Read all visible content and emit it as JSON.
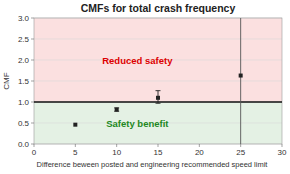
{
  "chart_data": {
    "type": "scatter",
    "title": "CMFs for total crash frequency",
    "x_label": "Difference beween posted and engineering recommended speed limit",
    "y_label": "CMF",
    "x": [
      5,
      10,
      15,
      25
    ],
    "values": [
      0.46,
      0.82,
      1.1,
      1.63
    ],
    "error_low": [
      0.0,
      0.04,
      0.13,
      0.0
    ],
    "error_high": [
      0.0,
      0.04,
      0.17,
      0.0
    ],
    "xlim": [
      0,
      30
    ],
    "ylim": [
      0.0,
      3.0
    ],
    "xticks": [
      0,
      5,
      10,
      15,
      20,
      25,
      30
    ],
    "yticks": [
      {
        "value": 0.0,
        "label": "0.0"
      },
      0.5,
      {
        "value": 1.0,
        "label": "1.0"
      },
      1.5,
      {
        "value": 2.0,
        "label": "2.0"
      },
      2.5,
      {
        "value": 3.0,
        "label": "3.0"
      }
    ],
    "grid": true,
    "marker": "square",
    "reference_lines": {
      "x": 25,
      "y": 1.0
    },
    "regions": [
      {
        "label": "Reduced safety",
        "color": "#dd0000",
        "side": "above"
      },
      {
        "label": "Safety benefit",
        "color": "#228822",
        "side": "below"
      }
    ]
  }
}
